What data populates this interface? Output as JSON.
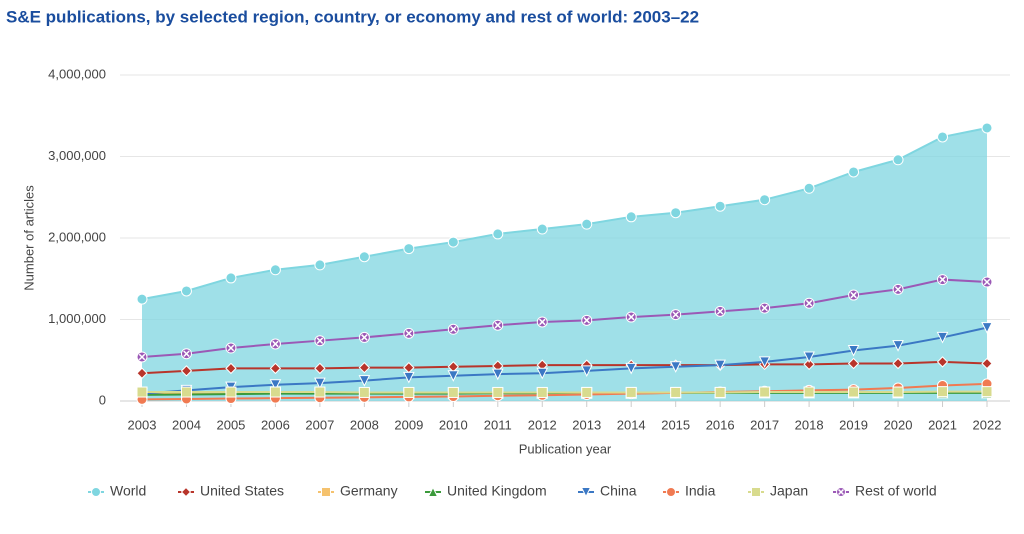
{
  "chart_data": {
    "type": "line",
    "title": "S&E publications, by selected region, country, or economy and rest of world: 2003–22",
    "x_label": "Publication year",
    "y_label": "Number of articles",
    "categories": [
      "2003",
      "2004",
      "2005",
      "2006",
      "2007",
      "2008",
      "2009",
      "2010",
      "2011",
      "2012",
      "2013",
      "2014",
      "2015",
      "2016",
      "2017",
      "2018",
      "2019",
      "2020",
      "2021",
      "2022"
    ],
    "ylim": [
      0,
      4000000
    ],
    "yticks": [
      0,
      {
        "value": 1000000,
        "label": "1,000,000"
      },
      {
        "value": 2000000,
        "label": "2,000,000"
      },
      {
        "value": 3000000,
        "label": "3,000,000"
      },
      {
        "value": 4000000,
        "label": "4,000,000"
      }
    ],
    "grid": true,
    "legend": "bottom",
    "series": [
      {
        "name": "World",
        "color": "#7fd6e0",
        "area": true,
        "marker": "circle",
        "values": [
          1250000,
          1350000,
          1510000,
          1610000,
          1670000,
          1770000,
          1870000,
          1950000,
          2050000,
          2110000,
          2170000,
          2260000,
          2310000,
          2390000,
          2470000,
          2610000,
          2810000,
          2960000,
          3240000,
          3350000
        ]
      },
      {
        "name": "United States",
        "color": "#b8352b",
        "marker": "diamond",
        "values": [
          340000,
          370000,
          400000,
          400000,
          400000,
          410000,
          410000,
          420000,
          430000,
          440000,
          440000,
          440000,
          440000,
          440000,
          450000,
          450000,
          460000,
          460000,
          480000,
          460000
        ]
      },
      {
        "name": "Germany",
        "color": "#f5c26e",
        "marker": "square",
        "values": [
          90000,
          90000,
          95000,
          95000,
          100000,
          100000,
          100000,
          100000,
          100000,
          100000,
          105000,
          105000,
          105000,
          105000,
          110000,
          110000,
          110000,
          110000,
          110000,
          110000
        ]
      },
      {
        "name": "United Kingdom",
        "color": "#3b9a3b",
        "marker": "triangle-up",
        "values": [
          75000,
          80000,
          85000,
          90000,
          90000,
          90000,
          90000,
          90000,
          95000,
          95000,
          95000,
          95000,
          100000,
          100000,
          100000,
          100000,
          100000,
          100000,
          100000,
          100000
        ]
      },
      {
        "name": "China",
        "color": "#3b78c4",
        "marker": "triangle-down",
        "values": [
          90000,
          130000,
          170000,
          200000,
          220000,
          250000,
          290000,
          310000,
          330000,
          340000,
          370000,
          400000,
          420000,
          440000,
          480000,
          540000,
          620000,
          680000,
          780000,
          900000
        ]
      },
      {
        "name": "India",
        "color": "#f07a52",
        "marker": "circle",
        "values": [
          20000,
          25000,
          30000,
          35000,
          40000,
          45000,
          50000,
          55000,
          65000,
          70000,
          80000,
          90000,
          100000,
          110000,
          120000,
          130000,
          140000,
          160000,
          190000,
          210000
        ]
      },
      {
        "name": "Japan",
        "color": "#d8db8e",
        "marker": "square",
        "values": [
          110000,
          110000,
          110000,
          110000,
          110000,
          105000,
          105000,
          105000,
          105000,
          105000,
          105000,
          105000,
          105000,
          105000,
          110000,
          110000,
          110000,
          110000,
          115000,
          115000
        ]
      },
      {
        "name": "Rest of world",
        "color": "#9b59b6",
        "marker": "circle-x",
        "values": [
          540000,
          580000,
          650000,
          700000,
          740000,
          780000,
          830000,
          880000,
          930000,
          970000,
          990000,
          1030000,
          1060000,
          1100000,
          1140000,
          1200000,
          1300000,
          1370000,
          1490000,
          1460000
        ]
      }
    ]
  }
}
